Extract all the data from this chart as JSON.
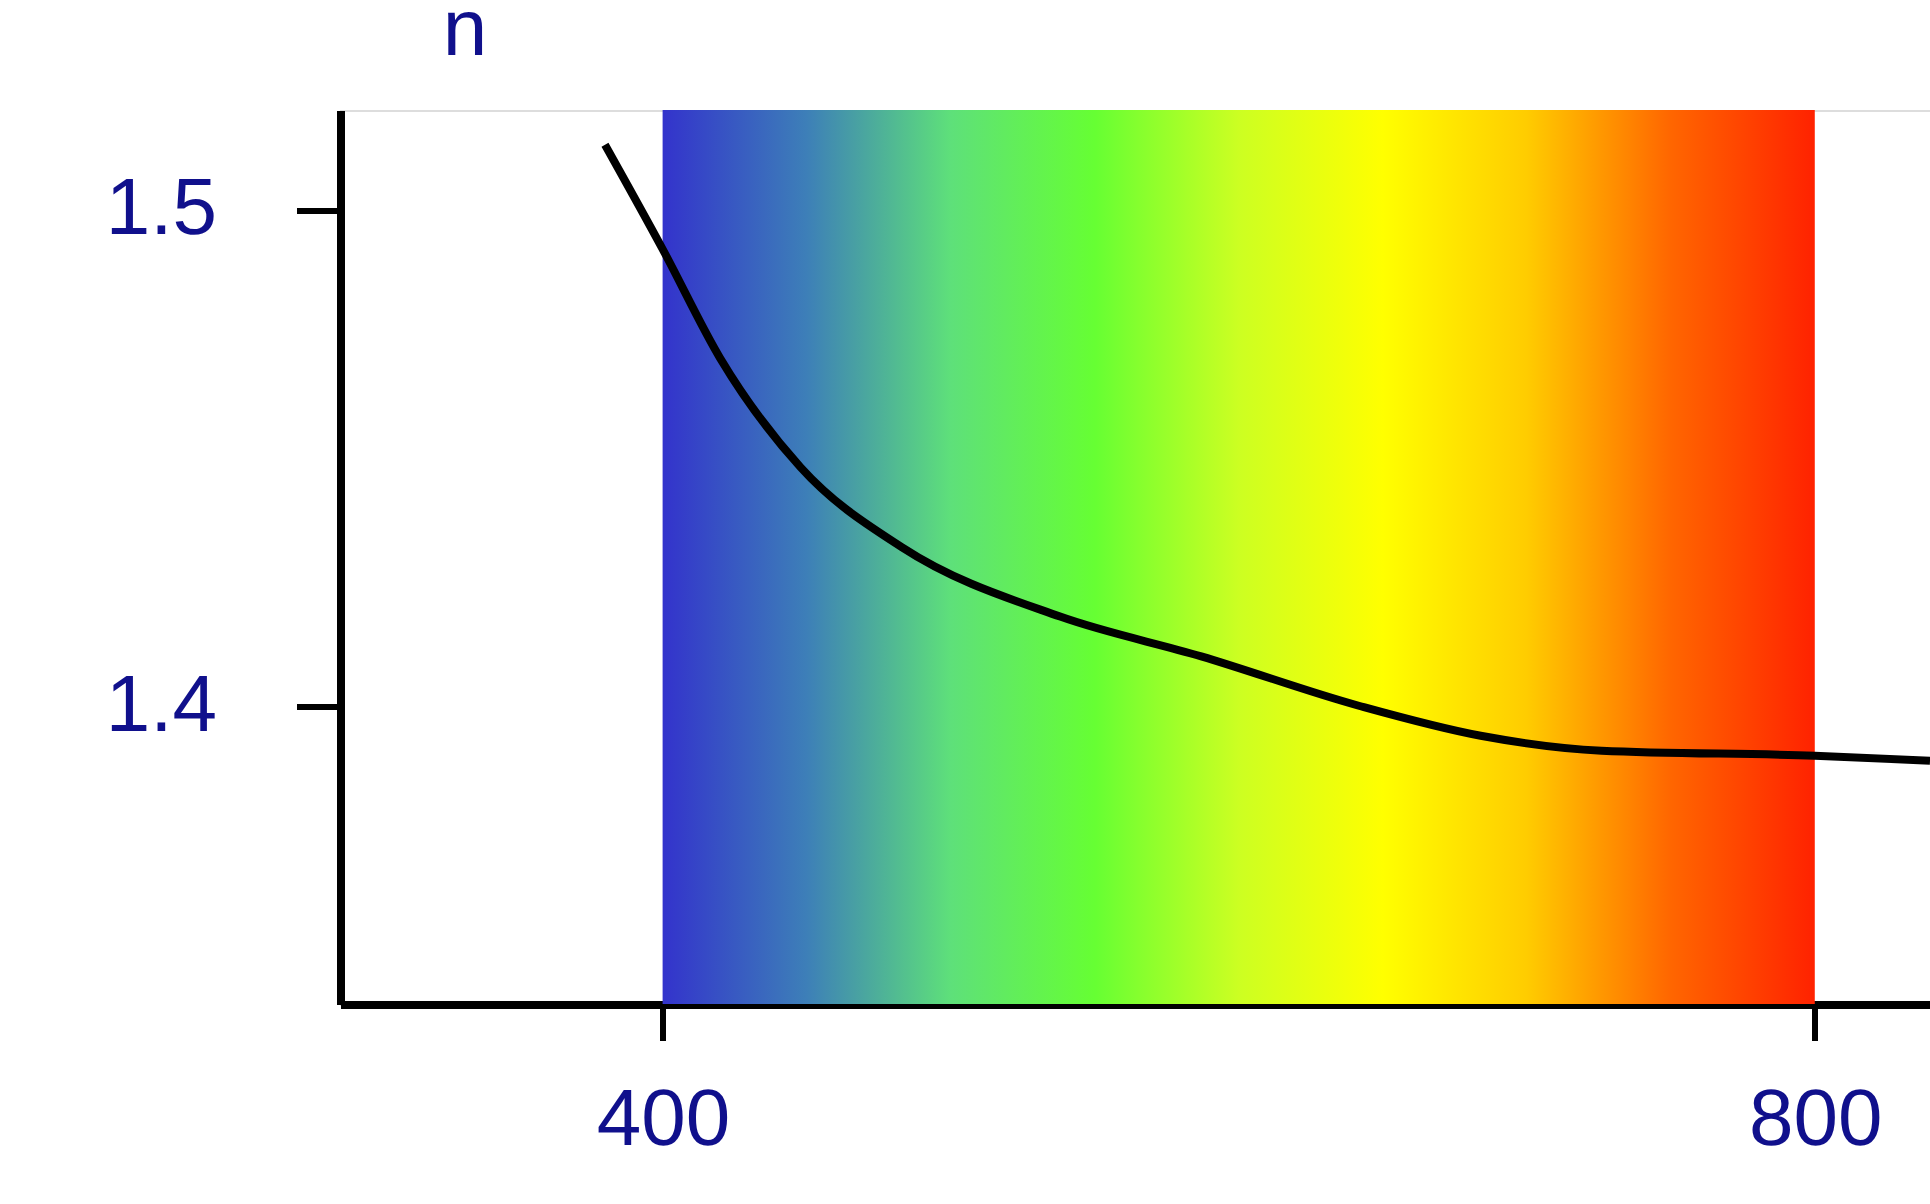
{
  "chart_data": {
    "type": "line",
    "ylabel": "n",
    "x": [
      380,
      400,
      420,
      448,
      483,
      538,
      587,
      642,
      684,
      726,
      800,
      840
    ],
    "series": [
      {
        "color": "#000000",
        "values": [
          1.513,
          1.492,
          1.47,
          1.448,
          1.432,
          1.418,
          1.41,
          1.4,
          1.394,
          1.391,
          1.39,
          1.389
        ]
      }
    ],
    "xlim": [
      288,
      840
    ],
    "ylim": [
      1.34,
      1.52
    ],
    "xticks": [
      400,
      800
    ],
    "yticks": [
      1.4,
      1.5
    ],
    "bands": [
      {
        "axis": "x",
        "from": 400,
        "to": 800
      }
    ],
    "grid": false,
    "marker": "none",
    "line_style": "solid"
  }
}
